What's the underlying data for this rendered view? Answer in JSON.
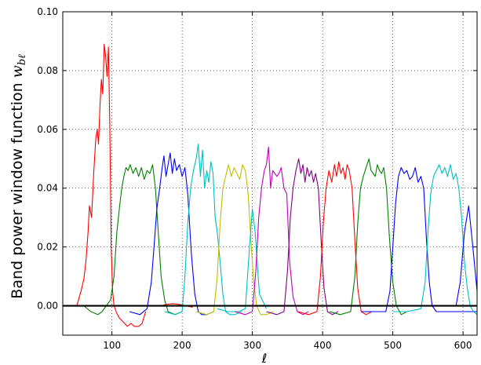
{
  "chart_data": {
    "type": "line",
    "title": "",
    "xlabel": "ℓ",
    "ylabel": "Band power window function w_bℓ",
    "ylabel_text": "Band power window function ",
    "ylabel_math": "w",
    "ylabel_sub": "bℓ",
    "xlim": [
      30,
      620
    ],
    "ylim": [
      -0.01,
      0.1
    ],
    "x_ticks": [
      100,
      200,
      300,
      400,
      500,
      600
    ],
    "y_ticks": [
      0.0,
      0.02,
      0.04,
      0.06,
      0.08,
      0.1
    ],
    "x_tick_labels": [
      "100",
      "200",
      "300",
      "400",
      "500",
      "600"
    ],
    "y_tick_labels": [
      "0.00",
      "0.02",
      "0.04",
      "0.06",
      "0.08",
      "0.10"
    ],
    "grid": true,
    "legend": "none",
    "zero_line": true,
    "series": [
      {
        "color": "#ff0000",
        "x": [
          50,
          56,
          60,
          63,
          66,
          68,
          71,
          74,
          77,
          79,
          81,
          83,
          85,
          87,
          89,
          91,
          93,
          95,
          97,
          99,
          101,
          103,
          106,
          110,
          114,
          118,
          122,
          127,
          132,
          138,
          143,
          148
        ],
        "y": [
          0.0,
          0.005,
          0.009,
          0.015,
          0.025,
          0.034,
          0.03,
          0.045,
          0.057,
          0.06,
          0.055,
          0.068,
          0.077,
          0.072,
          0.089,
          0.085,
          0.078,
          0.088,
          0.06,
          0.02,
          0.005,
          0.0,
          -0.002,
          -0.004,
          -0.005,
          -0.006,
          -0.007,
          -0.006,
          -0.007,
          -0.007,
          -0.006,
          -0.002
        ]
      },
      {
        "color": "#ff0000",
        "x": [
          170,
          178,
          186,
          195,
          205,
          215
        ],
        "y": [
          0.0,
          0.0005,
          0.0007,
          0.0005,
          0.0,
          -0.0005
        ]
      },
      {
        "color": "#008000",
        "x": [
          60,
          70,
          80,
          86,
          92,
          98,
          103,
          107,
          111,
          114,
          117,
          120,
          123,
          126,
          130,
          134,
          138,
          142,
          146,
          150,
          154,
          158,
          162,
          166,
          170,
          175,
          180,
          190,
          200
        ],
        "y": [
          0.0,
          -0.002,
          -0.003,
          -0.002,
          0.0,
          0.002,
          0.01,
          0.025,
          0.034,
          0.04,
          0.044,
          0.047,
          0.046,
          0.048,
          0.045,
          0.047,
          0.044,
          0.047,
          0.043,
          0.046,
          0.045,
          0.048,
          0.04,
          0.025,
          0.01,
          0.002,
          -0.002,
          -0.003,
          -0.002
        ]
      },
      {
        "color": "#0000ff",
        "x": [
          125,
          140,
          150,
          156,
          160,
          164,
          168,
          171,
          174,
          177,
          180,
          183,
          186,
          189,
          192,
          196,
          200,
          204,
          208,
          213,
          218,
          223,
          228,
          235,
          245
        ],
        "y": [
          -0.002,
          -0.003,
          -0.001,
          0.008,
          0.02,
          0.033,
          0.04,
          0.046,
          0.051,
          0.044,
          0.048,
          0.052,
          0.045,
          0.05,
          0.046,
          0.048,
          0.044,
          0.047,
          0.038,
          0.018,
          0.004,
          -0.002,
          -0.003,
          -0.003,
          -0.002
        ]
      },
      {
        "color": "#00bfbf",
        "x": [
          175,
          190,
          200,
          204,
          208,
          212,
          216,
          220,
          223,
          226,
          229,
          232,
          235,
          238,
          241,
          244,
          247,
          250,
          254,
          258,
          262,
          268,
          275,
          285
        ],
        "y": [
          -0.002,
          -0.003,
          -0.002,
          0.01,
          0.028,
          0.04,
          0.046,
          0.05,
          0.055,
          0.044,
          0.053,
          0.04,
          0.046,
          0.042,
          0.049,
          0.045,
          0.03,
          0.025,
          0.015,
          0.004,
          -0.002,
          -0.003,
          -0.003,
          -0.002
        ]
      },
      {
        "color": "#bfbf00",
        "x": [
          220,
          235,
          245,
          250,
          254,
          258,
          262,
          266,
          270,
          274,
          278,
          282,
          286,
          290,
          294,
          298,
          302,
          306,
          312,
          320,
          330
        ],
        "y": [
          -0.002,
          -0.003,
          -0.002,
          0.01,
          0.028,
          0.04,
          0.044,
          0.048,
          0.044,
          0.047,
          0.045,
          0.043,
          0.048,
          0.046,
          0.038,
          0.022,
          0.008,
          0.0,
          -0.003,
          -0.003,
          -0.002
        ]
      },
      {
        "color": "#00bfbf",
        "x": [
          250,
          265,
          280,
          290,
          296,
          300,
          304,
          310,
          320
        ],
        "y": [
          -0.001,
          -0.002,
          -0.002,
          -0.001,
          0.02,
          0.033,
          0.025,
          0.004,
          -0.001
        ]
      },
      {
        "color": "#bf00bf",
        "x": [
          275,
          290,
          300,
          305,
          309,
          313,
          317,
          320,
          323,
          326,
          329,
          332,
          335,
          338,
          341,
          345,
          349,
          353,
          358,
          364,
          372,
          380
        ],
        "y": [
          -0.002,
          -0.003,
          -0.002,
          0.012,
          0.03,
          0.04,
          0.046,
          0.048,
          0.054,
          0.04,
          0.046,
          0.045,
          0.044,
          0.045,
          0.047,
          0.04,
          0.038,
          0.015,
          0.003,
          -0.002,
          -0.003,
          -0.002
        ]
      },
      {
        "color": "#800080",
        "x": [
          320,
          335,
          345,
          350,
          354,
          358,
          362,
          366,
          369,
          372,
          375,
          378,
          381,
          384,
          387,
          390,
          394,
          398,
          402,
          407,
          414,
          422
        ],
        "y": [
          -0.002,
          -0.003,
          -0.002,
          0.012,
          0.03,
          0.04,
          0.046,
          0.05,
          0.045,
          0.048,
          0.042,
          0.047,
          0.044,
          0.046,
          0.042,
          0.045,
          0.04,
          0.022,
          0.006,
          -0.002,
          -0.003,
          -0.002
        ]
      },
      {
        "color": "#ff0000",
        "x": [
          365,
          380,
          392,
          397,
          401,
          405,
          409,
          413,
          417,
          420,
          423,
          426,
          429,
          432,
          435,
          438,
          442,
          446,
          450,
          455,
          462,
          470
        ],
        "y": [
          -0.002,
          -0.003,
          -0.002,
          0.01,
          0.028,
          0.04,
          0.046,
          0.042,
          0.048,
          0.044,
          0.049,
          0.045,
          0.047,
          0.043,
          0.048,
          0.046,
          0.04,
          0.022,
          0.006,
          -0.002,
          -0.003,
          -0.002
        ]
      },
      {
        "color": "#008000",
        "x": [
          410,
          425,
          440,
          446,
          450,
          454,
          458,
          462,
          466,
          469,
          472,
          475,
          478,
          481,
          484,
          487,
          491,
          495,
          500,
          505,
          512,
          520
        ],
        "y": [
          -0.002,
          -0.003,
          -0.002,
          0.01,
          0.028,
          0.04,
          0.044,
          0.047,
          0.05,
          0.046,
          0.045,
          0.044,
          0.048,
          0.046,
          0.045,
          0.047,
          0.04,
          0.024,
          0.008,
          0.0,
          -0.003,
          -0.002
        ]
      },
      {
        "color": "#0000ff",
        "x": [
          455,
          470,
          490,
          496,
          500,
          504,
          508,
          512,
          516,
          520,
          524,
          528,
          532,
          536,
          540,
          544,
          548,
          552,
          556,
          562,
          568,
          575,
          590,
          610,
          620
        ],
        "y": [
          -0.002,
          -0.002,
          -0.002,
          0.005,
          0.02,
          0.035,
          0.044,
          0.047,
          0.045,
          0.046,
          0.043,
          0.044,
          0.047,
          0.042,
          0.044,
          0.04,
          0.022,
          0.008,
          0.0,
          -0.002,
          -0.002,
          -0.002,
          -0.002,
          -0.002,
          -0.002
        ]
      },
      {
        "color": "#00bfbf",
        "x": [
          500,
          520,
          540,
          546,
          550,
          554,
          558,
          562,
          566,
          570,
          574,
          578,
          582,
          586,
          590,
          594,
          598,
          602,
          606,
          610,
          615,
          620
        ],
        "y": [
          -0.002,
          -0.002,
          -0.001,
          0.008,
          0.025,
          0.038,
          0.044,
          0.046,
          0.048,
          0.045,
          0.047,
          0.044,
          0.048,
          0.043,
          0.045,
          0.04,
          0.03,
          0.015,
          0.006,
          0.0,
          -0.002,
          -0.003
        ]
      },
      {
        "color": "#0000ff",
        "x": [
          590,
          596,
          602,
          608,
          614,
          620
        ],
        "y": [
          0.0,
          0.008,
          0.025,
          0.034,
          0.02,
          0.005
        ]
      }
    ]
  }
}
